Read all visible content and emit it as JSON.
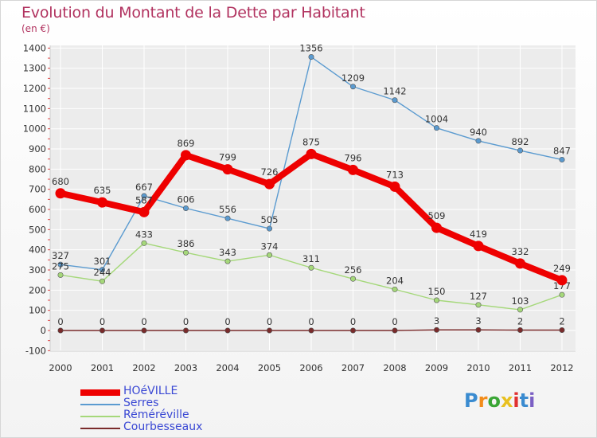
{
  "title": "Evolution du Montant de la Dette par Habitant",
  "subtitle": "(en €)",
  "logo_text": "Proxiti",
  "logo_colors": [
    "#3a8bd0",
    "#f28c1a",
    "#3aa635",
    "#e8c020",
    "#e03030",
    "#3a8bd0",
    "#7b5fc4"
  ],
  "chart_data": {
    "type": "line",
    "x": [
      "2000",
      "2001",
      "2002",
      "2003",
      "2004",
      "2005",
      "2006",
      "2007",
      "2008",
      "2009",
      "2010",
      "2011",
      "2012"
    ],
    "ylim": [
      -100,
      1400
    ],
    "yticks": [
      -100,
      0,
      100,
      200,
      300,
      400,
      500,
      600,
      700,
      800,
      900,
      1000,
      1100,
      1200,
      1300,
      1400
    ],
    "grid": true,
    "legend_position": "bottom-left",
    "series": [
      {
        "name": "Serres",
        "color": "#5b9bd0",
        "values": [
          327,
          301,
          667,
          606,
          556,
          505,
          1356,
          1209,
          1142,
          1004,
          940,
          892,
          847
        ]
      },
      {
        "name": "Réméréville",
        "color": "#a5d87a",
        "values": [
          275,
          244,
          433,
          386,
          343,
          374,
          311,
          256,
          204,
          150,
          127,
          103,
          177
        ]
      },
      {
        "name": "Courbesseaux",
        "color": "#7a2b2b",
        "values": [
          0,
          0,
          0,
          0,
          0,
          0,
          0,
          0,
          0,
          3,
          3,
          2,
          2
        ]
      },
      {
        "name": "HOéVILLE",
        "color": "#ee0000",
        "values": [
          680,
          635,
          587,
          869,
          799,
          726,
          875,
          796,
          713,
          509,
          419,
          332,
          249
        ]
      }
    ],
    "legend_order": [
      "HOéVILLE",
      "Serres",
      "Réméréville",
      "Courbesseaux"
    ]
  }
}
